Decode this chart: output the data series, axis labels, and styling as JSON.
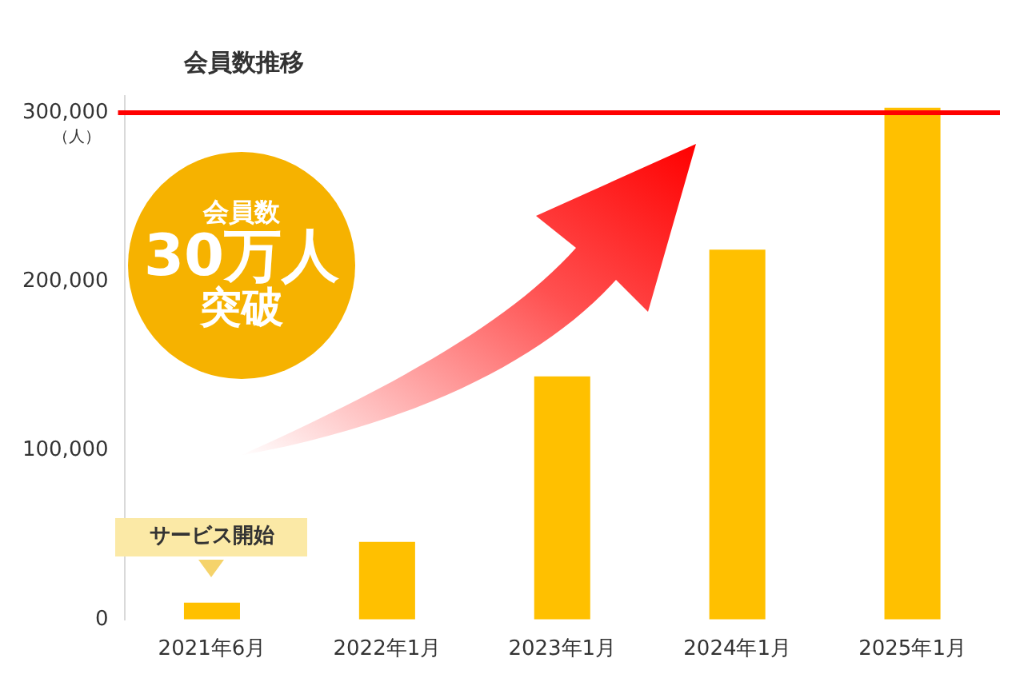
{
  "chart_data": {
    "type": "bar",
    "title": "会員数推移",
    "ylabel": "（人）",
    "categories": [
      "2021年6月",
      "2022年1月",
      "2023年1月",
      "2024年1月",
      "2025年1月"
    ],
    "values": [
      10000,
      46000,
      144000,
      219000,
      303000
    ],
    "color": "#ffc000",
    "ylim": [
      0,
      310000
    ],
    "yticks": [
      0,
      {
        "value": 100000,
        "label": "100,000"
      },
      {
        "value": 200000,
        "label": "200,000"
      },
      {
        "value": 300000,
        "label": "300,000"
      }
    ],
    "grid": false,
    "legend": false,
    "ref_lines": [
      {
        "axis": "y",
        "value": 300000,
        "color": "#ff0000"
      }
    ],
    "annotations": [
      {
        "text": "サービス開始",
        "x": "2021年6月",
        "y": 10000
      },
      "会員数",
      "30万人",
      "突破"
    ]
  }
}
